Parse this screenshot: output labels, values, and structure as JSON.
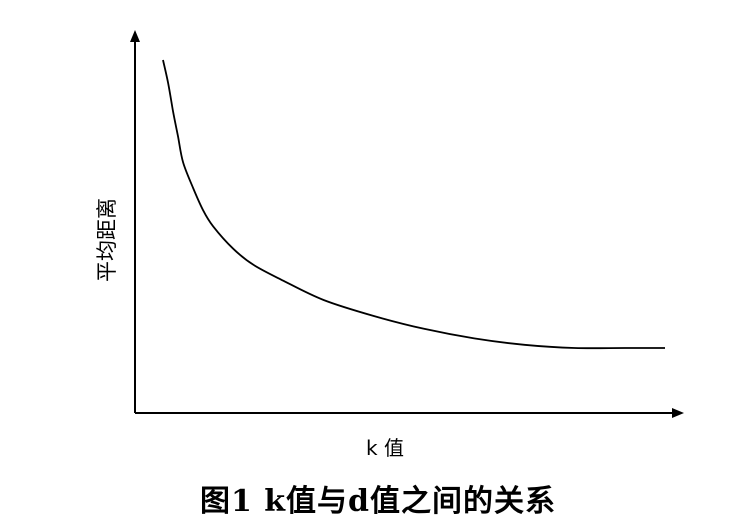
{
  "caption": "图1  k值与d值之间的关系",
  "chart_data": {
    "type": "line",
    "title": "",
    "xlabel": "k 值",
    "ylabel": "平均距离",
    "x_ticks": [],
    "y_ticks": [],
    "grid": false,
    "legend": "none",
    "xlim": [
      0,
      1
    ],
    "ylim": [
      0,
      1
    ],
    "series": [
      {
        "x": [
          0.0,
          0.01,
          0.02,
          0.03,
          0.04,
          0.06,
          0.08,
          0.1,
          0.14,
          0.18,
          0.24,
          0.32,
          0.42,
          0.52,
          0.62,
          0.72,
          0.82,
          0.92,
          1.0
        ],
        "y": [
          1.0,
          0.93,
          0.84,
          0.76,
          0.68,
          0.6,
          0.53,
          0.48,
          0.41,
          0.36,
          0.31,
          0.25,
          0.2,
          0.16,
          0.13,
          0.11,
          0.1,
          0.1,
          0.1
        ]
      }
    ],
    "colors": {
      "line": "#000000",
      "axis": "#000000"
    }
  }
}
